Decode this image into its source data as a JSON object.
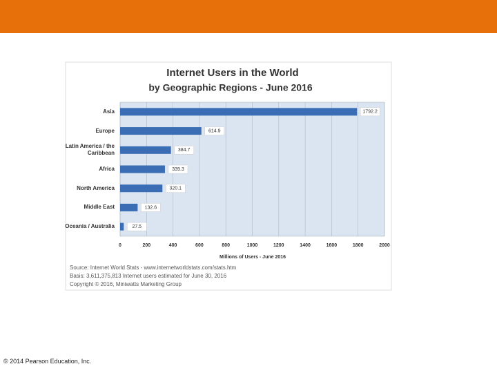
{
  "chart_data": {
    "type": "bar",
    "orientation": "horizontal",
    "title": "Internet Users in the World",
    "subtitle": "by Geographic Regions - June 2016",
    "categories": [
      "Asia",
      "Europe",
      "Latin America / the Caribbean",
      "Africa",
      "North America",
      "Middle East",
      "Oceania / Australia"
    ],
    "values": [
      1792.2,
      614.9,
      384.7,
      339.3,
      320.1,
      132.6,
      27.5
    ],
    "color": "#3a6db4",
    "xlim": [
      0,
      2000
    ],
    "xticks": [
      0,
      200,
      400,
      600,
      800,
      1000,
      1200,
      1400,
      1600,
      1800,
      2000
    ],
    "xlabel": "Millions of Users - June 2016",
    "grid": true,
    "notes": [
      "Source: Internet World Stats - www.internetworldstats.com/stats.htm",
      "Basis: 3,611,375,813 Internet users estimated for June 30, 2016",
      "Copyright © 2016, Miniwatts Marketing Group"
    ]
  },
  "footer": "© 2014 Pearson Education, Inc."
}
